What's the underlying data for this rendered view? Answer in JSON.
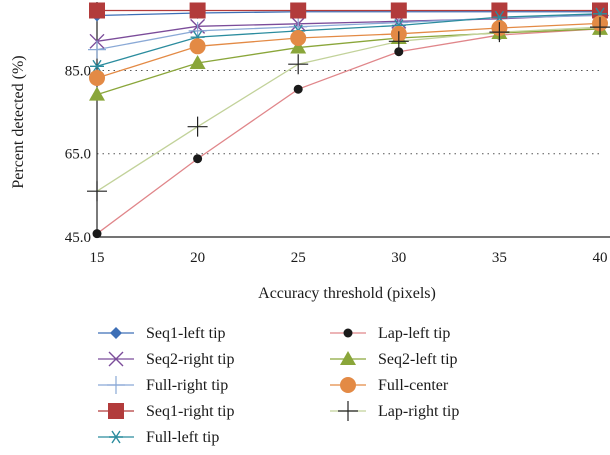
{
  "chart_data": {
    "type": "line",
    "xlabel": "Accuracy threshold (pixels)",
    "ylabel": "Percent detected (%)",
    "x": [
      15,
      20,
      25,
      30,
      35,
      40
    ],
    "x_tick_labels": [
      "15",
      "20",
      "25",
      "30",
      "35",
      "40"
    ],
    "y_tick_values": [
      45,
      65,
      85
    ],
    "y_tick_labels": [
      "45.0",
      "65.0",
      "85.0"
    ],
    "xlim": [
      15,
      40
    ],
    "ylim": [
      45,
      100
    ],
    "grid": "horizontal dotted",
    "legend_position": "bottom",
    "series": [
      {
        "name": "Seq1-left tip",
        "values": [
          98.2,
          98.8,
          99.1,
          99.1,
          99.1,
          99.1
        ],
        "color": "#3d6fb6",
        "marker": "diamond"
      },
      {
        "name": "Seq2-right tip",
        "values": [
          92.0,
          95.6,
          96.2,
          96.8,
          97.4,
          98.4
        ],
        "color": "#7b4c9a",
        "marker": "x"
      },
      {
        "name": "Full-right tip",
        "values": [
          90.0,
          94.5,
          95.5,
          96.5,
          97.6,
          98.2
        ],
        "color": "#8aa9d6",
        "marker": "plus"
      },
      {
        "name": "Seq1-right tip",
        "values": [
          99.4,
          99.4,
          99.4,
          99.4,
          99.4,
          99.4
        ],
        "color": "#b23b3b",
        "marker": "square"
      },
      {
        "name": "Full-left tip",
        "values": [
          86.0,
          93.0,
          94.5,
          95.8,
          97.8,
          98.6
        ],
        "color": "#2b8c9e",
        "marker": "asterisk"
      },
      {
        "name": "Lap-left tip",
        "values": [
          45.8,
          63.8,
          80.5,
          89.5,
          93.5,
          95.0
        ],
        "color": "#e0868a",
        "marker": "dot"
      },
      {
        "name": "Seq2-left tip",
        "values": [
          79.2,
          86.8,
          90.5,
          92.8,
          94.0,
          95.0
        ],
        "color": "#8aa63a",
        "marker": "triangle"
      },
      {
        "name": "Full-center",
        "values": [
          83.2,
          90.8,
          92.8,
          93.8,
          95.2,
          96.3
        ],
        "color": "#e38a45",
        "marker": "circle"
      },
      {
        "name": "Lap-right tip",
        "values": [
          56.0,
          71.5,
          86.5,
          92.0,
          94.2,
          95.4
        ],
        "color": "#c2d29a",
        "marker": "plus-dark"
      }
    ]
  }
}
